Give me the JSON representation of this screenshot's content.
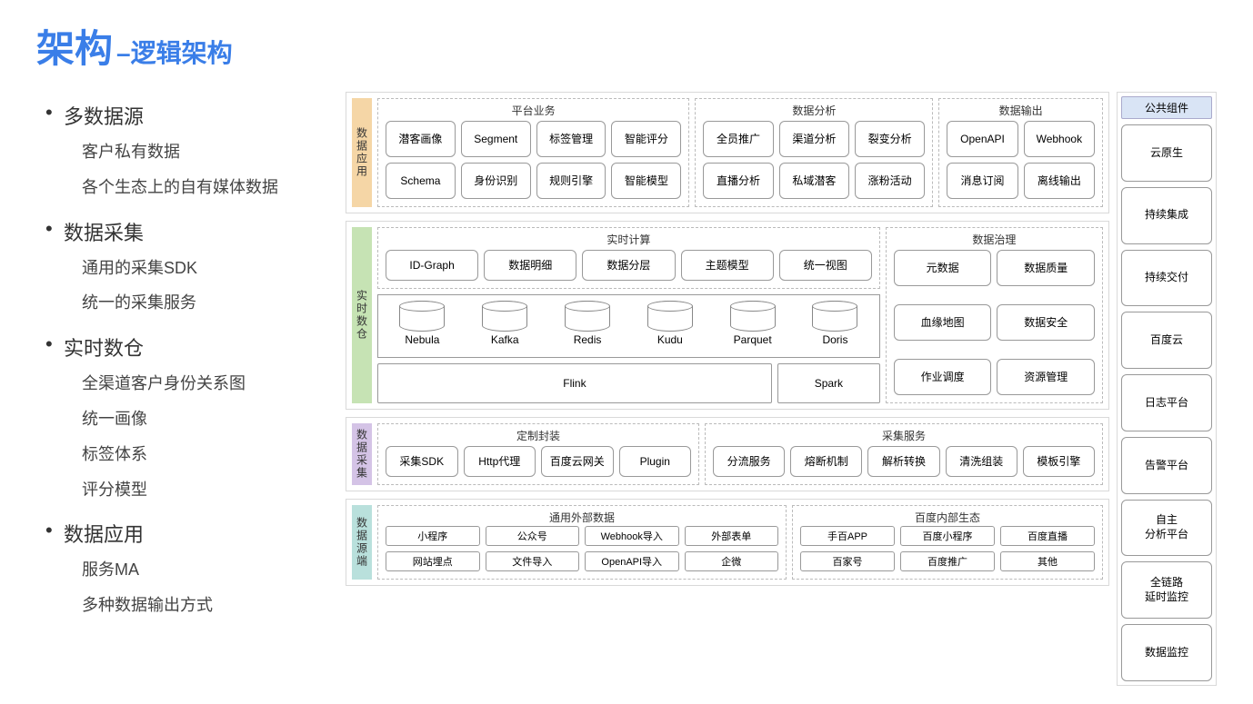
{
  "title": {
    "big": "架构",
    "sep": "–",
    "sub": "逻辑架构"
  },
  "colors": {
    "title": "#3a7ee8",
    "layer_border": "#d9d9d9",
    "group_border": "#bbbbbb",
    "block_border": "#999999",
    "layer_app_bg": "#f5d6a6",
    "layer_dw_bg": "#c6e3b4",
    "layer_col_bg": "#d4c3e6",
    "layer_src_bg": "#b9e0dc",
    "right_header_bg": "#d9e4f5"
  },
  "fonts": {
    "title_big_pt": 42,
    "title_sub_pt": 28,
    "bullet_main_pt": 22,
    "bullet_sub_pt": 18,
    "block_pt": 12,
    "block_sm_pt": 11
  },
  "bullets": [
    {
      "main": "多数据源",
      "subs": [
        "客户私有数据",
        "各个生态上的自有媒体数据"
      ]
    },
    {
      "main": "数据采集",
      "subs": [
        "通用的采集SDK",
        "统一的采集服务"
      ]
    },
    {
      "main": "实时数仓",
      "subs": [
        "全渠道客户身份关系图",
        "统一画像",
        "标签体系",
        "评分模型"
      ]
    },
    {
      "main": "数据应用",
      "subs": [
        "服务MA",
        "多种数据输出方式"
      ]
    }
  ],
  "right": {
    "header": "公共组件",
    "items": [
      "云原生",
      "持续集成",
      "持续交付",
      "百度云",
      "日志平台",
      "告警平台",
      "自主\n分析平台",
      "全链路\n延时监控",
      "数据监控"
    ]
  },
  "layers": {
    "app": {
      "label": "数据应用",
      "groups": [
        {
          "title": "平台业务",
          "flex": 4,
          "rows": [
            [
              "潜客画像",
              "Segment",
              "标签管理",
              "智能评分"
            ],
            [
              "Schema",
              "身份识别",
              "规则引擎",
              "智能模型"
            ]
          ]
        },
        {
          "title": "数据分析",
          "flex": 3,
          "rows": [
            [
              "全员推广",
              "渠道分析",
              "裂变分析"
            ],
            [
              "直播分析",
              "私域潜客",
              "涨粉活动"
            ]
          ]
        },
        {
          "title": "数据输出",
          "flex": 2,
          "rows": [
            [
              "OpenAPI",
              "Webhook"
            ],
            [
              "消息订阅",
              "离线输出"
            ]
          ]
        }
      ]
    },
    "dw": {
      "label": "实时数仓",
      "compute": {
        "title": "实时计算",
        "top": [
          "ID-Graph",
          "数据明细",
          "数据分层",
          "主题模型",
          "统一视图"
        ],
        "dbs": [
          "Nebula",
          "Kafka",
          "Redis",
          "Kudu",
          "Parquet",
          "Doris"
        ],
        "engines": {
          "flink": "Flink",
          "spark": "Spark"
        }
      },
      "gov": {
        "title": "数据治理",
        "rows": [
          [
            "元数据",
            "数据质量"
          ],
          [
            "血缘地图",
            "数据安全"
          ],
          [
            "作业调度",
            "资源管理"
          ]
        ]
      }
    },
    "col": {
      "label": "数据采集",
      "groups": [
        {
          "title": "定制封装",
          "flex": 4,
          "rows": [
            [
              "采集SDK",
              "Http代理",
              "百度云网关",
              "Plugin"
            ]
          ]
        },
        {
          "title": "采集服务",
          "flex": 5,
          "rows": [
            [
              "分流服务",
              "熔断机制",
              "解析转换",
              "清洗组装",
              "模板引擎"
            ]
          ]
        }
      ]
    },
    "src": {
      "label": "数据源端",
      "groups": [
        {
          "title": "通用外部数据",
          "flex": 4,
          "rows": [
            [
              "小程序",
              "公众号",
              "Webhook导入",
              "外部表单"
            ],
            [
              "网站埋点",
              "文件导入",
              "OpenAPI导入",
              "企微"
            ]
          ]
        },
        {
          "title": "百度内部生态",
          "flex": 3,
          "rows": [
            [
              "手百APP",
              "百度小程序",
              "百度直播"
            ],
            [
              "百家号",
              "百度推广",
              "其他"
            ]
          ]
        }
      ]
    }
  }
}
